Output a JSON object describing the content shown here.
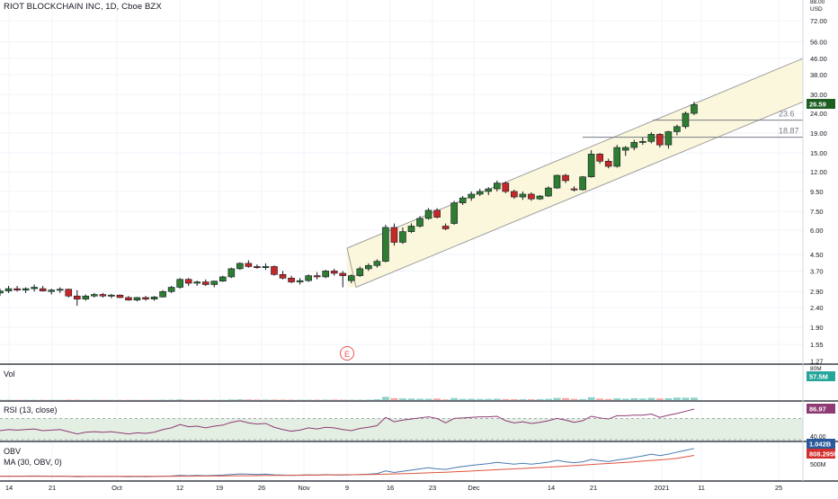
{
  "header": {
    "title": "RIOT BLOCKCHAIN INC, 1D, Cboe BZX"
  },
  "colors": {
    "up": "#26a69a",
    "down": "#ef5350",
    "up_candle": "#2e7d32",
    "down_candle": "#c62828",
    "channel_fill": "#fbf7dc",
    "channel_line": "#9e9e9e",
    "rsi_line": "#8e3b74",
    "rsi_band": "#e3efe3",
    "obv_line": "#4a7bb0",
    "obv_ma": "#e0533d",
    "price_badge": "#1b5e20",
    "vol_badge": "#26a69a",
    "rsi_badge": "#8e3b74",
    "obv_badge": "#2a5a9c",
    "obv_ma_badge": "#d32f2f"
  },
  "price_axis": {
    "scale": "log",
    "labels": [
      "88.00",
      "USD",
      "72.00",
      "56.00",
      "46.00",
      "38.00",
      "30.00",
      "24.00",
      "19.00",
      "15.00",
      "12.00",
      "9.50",
      "7.50",
      "6.00",
      "4.50",
      "3.70",
      "2.90",
      "2.40",
      "1.90",
      "1.55",
      "1.27"
    ],
    "last_price": "26.59"
  },
  "fib_labels": {
    "upper": "23.6",
    "lower": "18.87"
  },
  "earnings_marker": "E",
  "volume_pane": {
    "label": "Vol",
    "axis_label": "80M",
    "last_value": "57.5M"
  },
  "rsi_pane": {
    "label": "RSI (13, close)",
    "axis_label": "40.00",
    "last_value": "86.97"
  },
  "obv_pane": {
    "label": "OBV",
    "ma_label": "MA (30, OBV, 0)",
    "axis_label": "500M",
    "last_value": "1.042B",
    "ma_last_value": "808.295M"
  },
  "x_axis": {
    "labels": [
      "14",
      "21",
      "Oct",
      "12",
      "19",
      "26",
      "Nov",
      "9",
      "16",
      "23",
      "Dec",
      "14",
      "21",
      "2021",
      "11",
      "25"
    ]
  },
  "chart_data": {
    "type": "candlestick",
    "price_scale": "log",
    "ylim": [
      1.27,
      88
    ],
    "candles": [
      {
        "o": 2.85,
        "h": 3.0,
        "l": 2.75,
        "c": 2.92
      },
      {
        "o": 2.92,
        "h": 3.1,
        "l": 2.85,
        "c": 3.0
      },
      {
        "o": 3.0,
        "h": 3.1,
        "l": 2.9,
        "c": 2.95
      },
      {
        "o": 2.95,
        "h": 3.05,
        "l": 2.85,
        "c": 3.0
      },
      {
        "o": 3.0,
        "h": 3.15,
        "l": 2.9,
        "c": 3.05
      },
      {
        "o": 3.0,
        "h": 3.1,
        "l": 2.9,
        "c": 2.92
      },
      {
        "o": 2.9,
        "h": 3.0,
        "l": 2.8,
        "c": 2.95
      },
      {
        "o": 2.95,
        "h": 3.05,
        "l": 2.85,
        "c": 2.98
      },
      {
        "o": 2.98,
        "h": 3.0,
        "l": 2.7,
        "c": 2.75
      },
      {
        "o": 2.75,
        "h": 2.95,
        "l": 2.45,
        "c": 2.65
      },
      {
        "o": 2.65,
        "h": 2.8,
        "l": 2.6,
        "c": 2.75
      },
      {
        "o": 2.75,
        "h": 2.85,
        "l": 2.7,
        "c": 2.8
      },
      {
        "o": 2.8,
        "h": 2.85,
        "l": 2.7,
        "c": 2.75
      },
      {
        "o": 2.75,
        "h": 2.82,
        "l": 2.68,
        "c": 2.78
      },
      {
        "o": 2.78,
        "h": 2.8,
        "l": 2.68,
        "c": 2.7
      },
      {
        "o": 2.7,
        "h": 2.75,
        "l": 2.6,
        "c": 2.62
      },
      {
        "o": 2.62,
        "h": 2.72,
        "l": 2.58,
        "c": 2.7
      },
      {
        "o": 2.7,
        "h": 2.75,
        "l": 2.6,
        "c": 2.65
      },
      {
        "o": 2.65,
        "h": 2.75,
        "l": 2.6,
        "c": 2.72
      },
      {
        "o": 2.72,
        "h": 2.95,
        "l": 2.7,
        "c": 2.9
      },
      {
        "o": 2.9,
        "h": 3.1,
        "l": 2.85,
        "c": 3.05
      },
      {
        "o": 3.05,
        "h": 3.4,
        "l": 3.0,
        "c": 3.35
      },
      {
        "o": 3.35,
        "h": 3.4,
        "l": 3.1,
        "c": 3.2
      },
      {
        "o": 3.2,
        "h": 3.3,
        "l": 3.1,
        "c": 3.25
      },
      {
        "o": 3.25,
        "h": 3.35,
        "l": 3.1,
        "c": 3.15
      },
      {
        "o": 3.15,
        "h": 3.3,
        "l": 3.05,
        "c": 3.28
      },
      {
        "o": 3.28,
        "h": 3.5,
        "l": 3.25,
        "c": 3.45
      },
      {
        "o": 3.45,
        "h": 3.85,
        "l": 3.4,
        "c": 3.8
      },
      {
        "o": 3.8,
        "h": 4.1,
        "l": 3.75,
        "c": 4.05
      },
      {
        "o": 4.05,
        "h": 4.2,
        "l": 3.85,
        "c": 3.9
      },
      {
        "o": 3.9,
        "h": 4.0,
        "l": 3.8,
        "c": 3.85
      },
      {
        "o": 3.85,
        "h": 4.05,
        "l": 3.75,
        "c": 3.9
      },
      {
        "o": 3.9,
        "h": 3.95,
        "l": 3.5,
        "c": 3.55
      },
      {
        "o": 3.55,
        "h": 3.7,
        "l": 3.35,
        "c": 3.4
      },
      {
        "o": 3.4,
        "h": 3.5,
        "l": 3.2,
        "c": 3.25
      },
      {
        "o": 3.25,
        "h": 3.4,
        "l": 3.15,
        "c": 3.3
      },
      {
        "o": 3.3,
        "h": 3.55,
        "l": 3.25,
        "c": 3.5
      },
      {
        "o": 3.5,
        "h": 3.65,
        "l": 3.35,
        "c": 3.45
      },
      {
        "o": 3.45,
        "h": 3.75,
        "l": 3.4,
        "c": 3.7
      },
      {
        "o": 3.7,
        "h": 3.8,
        "l": 3.5,
        "c": 3.6
      },
      {
        "o": 3.6,
        "h": 3.7,
        "l": 3.05,
        "c": 3.5
      },
      {
        "o": 3.3,
        "h": 3.55,
        "l": 3.2,
        "c": 3.5
      },
      {
        "o": 3.5,
        "h": 3.9,
        "l": 3.45,
        "c": 3.8
      },
      {
        "o": 3.8,
        "h": 4.05,
        "l": 3.7,
        "c": 3.95
      },
      {
        "o": 3.95,
        "h": 4.25,
        "l": 3.85,
        "c": 4.15
      },
      {
        "o": 4.15,
        "h": 6.4,
        "l": 4.1,
        "c": 6.2
      },
      {
        "o": 6.2,
        "h": 6.5,
        "l": 5.0,
        "c": 5.2
      },
      {
        "o": 5.2,
        "h": 6.2,
        "l": 5.1,
        "c": 5.9
      },
      {
        "o": 5.9,
        "h": 6.5,
        "l": 5.8,
        "c": 6.3
      },
      {
        "o": 6.3,
        "h": 7.1,
        "l": 6.2,
        "c": 6.9
      },
      {
        "o": 6.9,
        "h": 7.8,
        "l": 6.8,
        "c": 7.6
      },
      {
        "o": 7.6,
        "h": 7.8,
        "l": 6.9,
        "c": 7.0
      },
      {
        "o": 6.3,
        "h": 6.5,
        "l": 6.0,
        "c": 6.1
      },
      {
        "o": 6.5,
        "h": 8.5,
        "l": 6.4,
        "c": 8.3
      },
      {
        "o": 8.3,
        "h": 9.0,
        "l": 8.1,
        "c": 8.8
      },
      {
        "o": 8.8,
        "h": 9.5,
        "l": 8.5,
        "c": 9.2
      },
      {
        "o": 9.2,
        "h": 9.8,
        "l": 9.0,
        "c": 9.5
      },
      {
        "o": 9.5,
        "h": 10.0,
        "l": 9.1,
        "c": 9.8
      },
      {
        "o": 9.8,
        "h": 10.8,
        "l": 9.5,
        "c": 10.5
      },
      {
        "o": 10.5,
        "h": 10.7,
        "l": 9.3,
        "c": 9.5
      },
      {
        "o": 9.5,
        "h": 9.7,
        "l": 8.7,
        "c": 8.9
      },
      {
        "o": 8.9,
        "h": 9.5,
        "l": 8.6,
        "c": 9.2
      },
      {
        "o": 9.2,
        "h": 9.4,
        "l": 8.5,
        "c": 8.7
      },
      {
        "o": 8.7,
        "h": 9.1,
        "l": 8.6,
        "c": 9.0
      },
      {
        "o": 9.0,
        "h": 10.1,
        "l": 8.9,
        "c": 9.9
      },
      {
        "o": 9.9,
        "h": 11.6,
        "l": 9.8,
        "c": 11.5
      },
      {
        "o": 11.5,
        "h": 11.7,
        "l": 10.5,
        "c": 10.8
      },
      {
        "o": 9.8,
        "h": 10.1,
        "l": 9.5,
        "c": 9.7
      },
      {
        "o": 9.7,
        "h": 11.4,
        "l": 9.6,
        "c": 11.3
      },
      {
        "o": 11.3,
        "h": 15.5,
        "l": 11.2,
        "c": 14.8
      },
      {
        "o": 14.8,
        "h": 15.0,
        "l": 13.2,
        "c": 13.6
      },
      {
        "o": 13.6,
        "h": 14.0,
        "l": 12.5,
        "c": 12.8
      },
      {
        "o": 12.8,
        "h": 16.5,
        "l": 12.6,
        "c": 16.0
      },
      {
        "o": 15.5,
        "h": 16.3,
        "l": 14.5,
        "c": 16.0
      },
      {
        "o": 16.0,
        "h": 17.5,
        "l": 15.5,
        "c": 17.0
      },
      {
        "o": 17.0,
        "h": 18.0,
        "l": 16.5,
        "c": 17.2
      },
      {
        "o": 17.2,
        "h": 19.2,
        "l": 16.8,
        "c": 18.7
      },
      {
        "o": 18.7,
        "h": 19.0,
        "l": 16.0,
        "c": 16.5
      },
      {
        "o": 16.5,
        "h": 19.5,
        "l": 15.8,
        "c": 19.3
      },
      {
        "o": 19.3,
        "h": 21.0,
        "l": 18.5,
        "c": 20.5
      },
      {
        "o": 20.5,
        "h": 24.5,
        "l": 20.0,
        "c": 24.0
      },
      {
        "o": 24.0,
        "h": 27.5,
        "l": 23.5,
        "c": 26.59
      }
    ],
    "volume": [
      0.9,
      1.0,
      0.8,
      0.9,
      0.8,
      0.9,
      0.8,
      0.8,
      1.2,
      1.1,
      0.8,
      0.9,
      0.9,
      0.8,
      0.7,
      0.9,
      0.7,
      0.8,
      0.8,
      1.2,
      1.3,
      2.0,
      1.0,
      0.9,
      0.8,
      0.9,
      1.0,
      1.8,
      2.3,
      1.9,
      1.5,
      1.5,
      1.6,
      1.4,
      1.2,
      1.1,
      1.2,
      1.1,
      1.4,
      1.6,
      1.3,
      1.0,
      1.1,
      1.3,
      2.5,
      9.5,
      5.5,
      4.8,
      4.5,
      4.0,
      3.8,
      4.5,
      2.0,
      6.0,
      3.5,
      3.8,
      3.2,
      3.5,
      3.9,
      2.8,
      2.6,
      2.8,
      2.5,
      2.9,
      3.6,
      6.2,
      5.8,
      3.5,
      3.0,
      8.3,
      4.5,
      3.2,
      5.2,
      4.0,
      5.5,
      4.5,
      6.3,
      4.8,
      5.4,
      7.2,
      7.0,
      7.1
    ],
    "volume_ylim": [
      0,
      100
    ],
    "rsi": [
      48,
      50,
      49,
      50,
      51,
      48,
      49,
      50,
      46,
      42,
      45,
      46,
      45,
      46,
      44,
      42,
      44,
      43,
      45,
      50,
      53,
      59,
      55,
      56,
      53,
      56,
      58,
      63,
      66,
      62,
      60,
      61,
      54,
      50,
      47,
      49,
      53,
      51,
      54,
      53,
      50,
      48,
      52,
      54,
      57,
      72,
      64,
      67,
      69,
      71,
      73,
      70,
      62,
      70,
      71,
      72,
      73,
      73,
      74,
      66,
      62,
      64,
      61,
      63,
      66,
      70,
      67,
      63,
      66,
      74,
      71,
      69,
      75,
      75,
      76,
      76,
      78,
      72,
      76,
      79,
      83,
      86.97
    ],
    "rsi_ylim": [
      30,
      100
    ],
    "obv": [
      0.1,
      0.105,
      0.1,
      0.105,
      0.11,
      0.105,
      0.1,
      0.105,
      0.095,
      0.085,
      0.09,
      0.095,
      0.09,
      0.095,
      0.09,
      0.085,
      0.09,
      0.085,
      0.09,
      0.1,
      0.11,
      0.13,
      0.12,
      0.13,
      0.12,
      0.13,
      0.14,
      0.16,
      0.18,
      0.17,
      0.16,
      0.17,
      0.15,
      0.14,
      0.13,
      0.14,
      0.15,
      0.14,
      0.155,
      0.145,
      0.14,
      0.15,
      0.16,
      0.17,
      0.19,
      0.28,
      0.23,
      0.27,
      0.31,
      0.35,
      0.39,
      0.35,
      0.33,
      0.39,
      0.43,
      0.47,
      0.5,
      0.53,
      0.57,
      0.54,
      0.51,
      0.54,
      0.51,
      0.54,
      0.58,
      0.64,
      0.59,
      0.56,
      0.59,
      0.67,
      0.63,
      0.6,
      0.65,
      0.69,
      0.74,
      0.79,
      0.85,
      0.8,
      0.85,
      0.92,
      0.98,
      1.042
    ],
    "obv_ma": [
      0.1,
      0.1,
      0.1,
      0.1,
      0.1,
      0.1,
      0.1,
      0.1,
      0.1,
      0.1,
      0.1,
      0.1,
      0.1,
      0.1,
      0.1,
      0.1,
      0.1,
      0.1,
      0.1,
      0.1,
      0.1,
      0.102,
      0.104,
      0.106,
      0.108,
      0.11,
      0.112,
      0.115,
      0.118,
      0.12,
      0.123,
      0.126,
      0.128,
      0.13,
      0.132,
      0.135,
      0.138,
      0.14,
      0.143,
      0.146,
      0.15,
      0.153,
      0.157,
      0.16,
      0.165,
      0.172,
      0.178,
      0.186,
      0.195,
      0.205,
      0.216,
      0.227,
      0.238,
      0.25,
      0.263,
      0.277,
      0.292,
      0.307,
      0.323,
      0.338,
      0.352,
      0.366,
      0.38,
      0.395,
      0.41,
      0.428,
      0.445,
      0.462,
      0.48,
      0.5,
      0.518,
      0.535,
      0.553,
      0.572,
      0.592,
      0.613,
      0.635,
      0.657,
      0.68,
      0.71,
      0.758,
      0.808
    ],
    "obv_ylim": [
      0,
      1.25
    ]
  }
}
